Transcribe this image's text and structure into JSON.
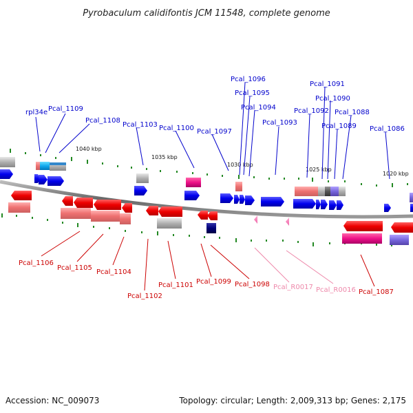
{
  "title": "Pyrobaculum calidifontis JCM 11548, complete genome",
  "footer": {
    "accession": "Accession: NC_009073",
    "summary": "Topology: circular; Length: 2,009,313 bp; Genes: 2,175"
  },
  "colors": {
    "forward_label": "#0000cc",
    "reverse_label": "#cc0000",
    "rna_label": "#ee88aa",
    "backbone": "#777777",
    "tick": "#228822"
  },
  "scale_labels": [
    "1040 kbp",
    "1035 kbp",
    "1030 kbp",
    "1025 kbp",
    "1020 kbp"
  ],
  "forward_genes": [
    "rpl34e",
    "Pcal_1109",
    "Pcal_1108",
    "Pcal_1103",
    "Pcal_1100",
    "Pcal_1097",
    "Pcal_1096",
    "Pcal_1095",
    "Pcal_1094",
    "Pcal_1093",
    "Pcal_1092",
    "Pcal_1091",
    "Pcal_1090",
    "Pcal_1089",
    "Pcal_1088",
    "Pcal_1086"
  ],
  "reverse_genes": [
    "Pcal_1106",
    "Pcal_1105",
    "Pcal_1104",
    "Pcal_1102",
    "Pcal_1101",
    "Pcal_1099",
    "Pcal_1098",
    "Pcal_1087"
  ],
  "rna_genes": [
    "Pcal_R0017",
    "Pcal_R0016"
  ]
}
